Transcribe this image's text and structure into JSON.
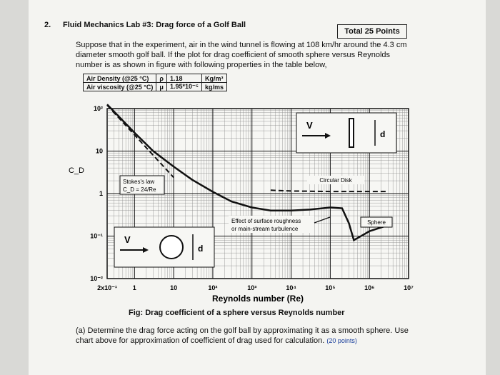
{
  "header": {
    "number": "2.",
    "title": "Fluid Mechanics Lab #3: Drag force of a Golf Ball",
    "total": "Total 25 Points"
  },
  "intro": "Suppose that in the experiment, air in the wind tunnel is flowing at 108 km/hr around the 4.3 cm diameter smooth golf ball. If the plot for drag coefficient of smooth sphere versus Reynolds number is as shown in figure with following properties in the table below,",
  "table": {
    "rows": [
      [
        "Air Density (@25 °C)",
        "ρ",
        "1.18",
        "Kg/m³"
      ],
      [
        "Air viscosity (@25 °C)",
        "μ",
        "1.95*10⁻⁵",
        "kg/ms"
      ]
    ]
  },
  "figure": {
    "chart_data": {
      "type": "line",
      "log_x": true,
      "log_y": true,
      "grid": true,
      "x_label": "Reynolds number (Re)",
      "y_label": "C_D",
      "xlim": [
        0.2,
        10000000
      ],
      "xticks": [
        {
          "value": 0.2,
          "label": "2x10⁻¹"
        },
        1,
        10,
        {
          "value": 100,
          "label": "10²"
        },
        {
          "value": 1000,
          "label": "10³"
        },
        {
          "value": 10000,
          "label": "10⁴"
        },
        {
          "value": 100000,
          "label": "10⁵"
        },
        {
          "value": 1000000,
          "label": "10⁶"
        },
        {
          "value": 10000000,
          "label": "10⁷"
        }
      ],
      "ylim": [
        0.01,
        100
      ],
      "yticks": [
        {
          "value": 0.01,
          "label": "10⁻²"
        },
        {
          "value": 0.1,
          "label": "10⁻¹"
        },
        1,
        10,
        {
          "value": 100,
          "label": "10²"
        }
      ],
      "series": [
        {
          "name": "Sphere",
          "color": "#111111",
          "style": "solid",
          "x": [
            0.2,
            1,
            3,
            10,
            30,
            100,
            300,
            1000,
            3000,
            10000,
            30000,
            100000,
            200000,
            300000,
            400000,
            1000000,
            3000000
          ],
          "values": [
            125,
            27,
            10,
            4.3,
            2.1,
            1.1,
            0.65,
            0.47,
            0.4,
            0.4,
            0.42,
            0.47,
            0.45,
            0.2,
            0.08,
            0.13,
            0.18
          ]
        },
        {
          "name": "Circular Disk",
          "color": "#111111",
          "style": "dashed",
          "x": [
            3000,
            10000,
            100000,
            1000000,
            3000000
          ],
          "values": [
            1.2,
            1.15,
            1.12,
            1.12,
            1.12
          ]
        },
        {
          "name": "Stokes's law",
          "color": "#111111",
          "style": "dashed",
          "x": [
            0.2,
            1,
            10
          ],
          "values": [
            120,
            24,
            2.4
          ]
        }
      ],
      "annotations": [
        "C_D = 24/Re",
        "Effect of surface roughness",
        "or main-stream turbulence"
      ]
    },
    "insets": [
      {
        "velocity": "V",
        "diameter": "d"
      },
      {
        "velocity": "V",
        "diameter": "d"
      }
    ],
    "caption": "Fig: Drag coefficient of a sphere versus Reynolds number"
  },
  "question": {
    "text": "(a) Determine the drag force acting on the golf ball by approximating it as a smooth sphere. Use chart above for approximation of coefficient of drag used for calculation.",
    "points": "(20 points)"
  }
}
